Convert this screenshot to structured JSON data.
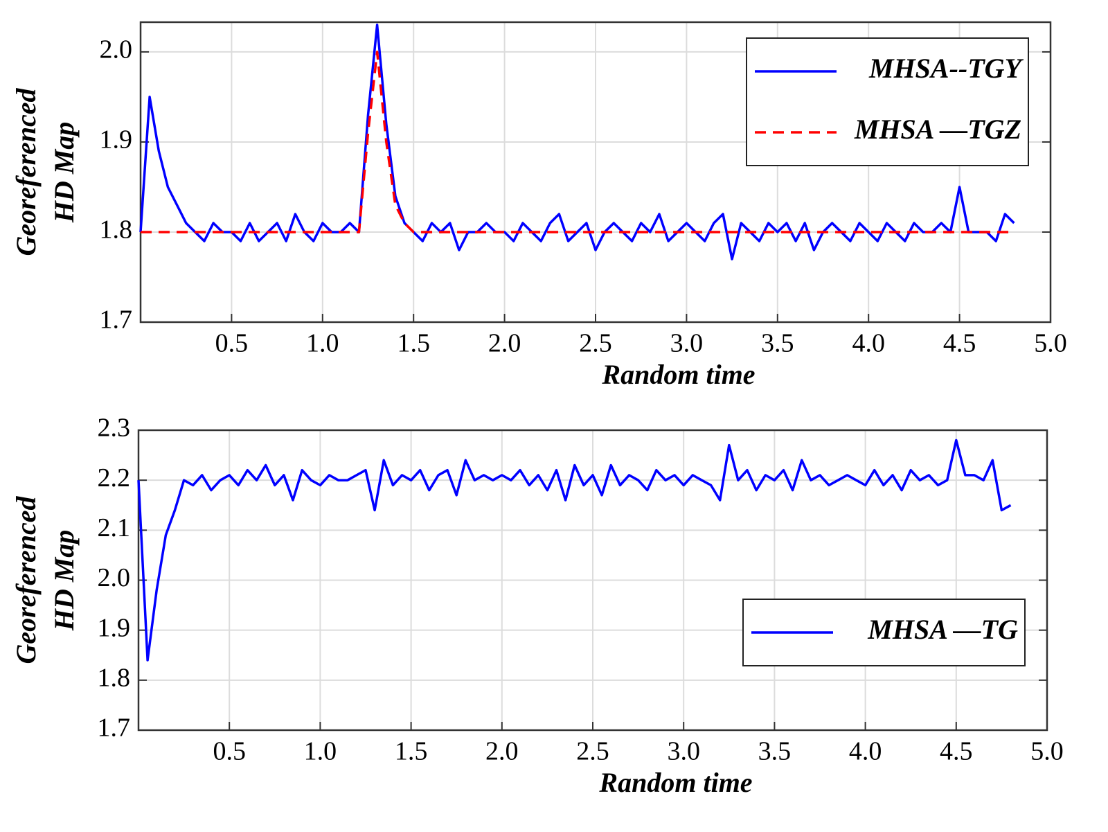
{
  "chart_data": [
    {
      "type": "line",
      "xlabel": "Random time",
      "ylabel": [
        "Georeferenced",
        "HD Map"
      ],
      "xlim": [
        0,
        5
      ],
      "ylim": [
        1.7,
        2.033
      ],
      "grid": true,
      "legend": "upper right",
      "xticks": [
        0.5,
        {
          "value": 1,
          "label": "1.0"
        },
        1.5,
        {
          "value": 2,
          "label": "2.0"
        },
        2.5,
        {
          "value": 3,
          "label": "3.0"
        },
        3.5,
        {
          "value": 4,
          "label": "4.0"
        },
        4.5,
        {
          "value": 5,
          "label": "5.0"
        }
      ],
      "yticks": [
        1.7,
        1.8,
        1.9,
        {
          "value": 2,
          "label": "2.0"
        }
      ],
      "x": [
        0,
        0.05,
        0.1,
        0.15,
        0.2,
        0.25,
        0.3,
        0.35,
        0.4,
        0.45,
        0.5,
        0.55,
        0.6,
        0.65,
        0.7,
        0.75,
        0.8,
        0.85,
        0.9,
        0.95,
        1,
        1.05,
        1.1,
        1.15,
        1.2,
        1.25,
        1.3,
        1.35,
        1.4,
        1.45,
        1.5,
        1.55,
        1.6,
        1.65,
        1.7,
        1.75,
        1.8,
        1.85,
        1.9,
        1.95,
        2,
        2.05,
        2.1,
        2.15,
        2.2,
        2.25,
        2.3,
        2.35,
        2.4,
        2.45,
        2.5,
        2.55,
        2.6,
        2.65,
        2.7,
        2.75,
        2.8,
        2.85,
        2.9,
        2.95,
        3,
        3.05,
        3.1,
        3.15,
        3.2,
        3.25,
        3.3,
        3.35,
        3.4,
        3.45,
        3.5,
        3.55,
        3.6,
        3.65,
        3.7,
        3.75,
        3.8,
        3.85,
        3.9,
        3.95,
        4,
        4.05,
        4.1,
        4.15,
        4.2,
        4.25,
        4.3,
        4.35,
        4.4,
        4.45,
        4.5,
        4.55,
        4.6,
        4.65,
        4.7,
        4.75,
        4.8
      ],
      "series": [
        {
          "name": "MHSA--TGY",
          "color": "#0000ff",
          "dash": false,
          "values": [
            1.8,
            1.95,
            1.89,
            1.85,
            1.83,
            1.81,
            1.8,
            1.79,
            1.81,
            1.8,
            1.8,
            1.79,
            1.81,
            1.79,
            1.8,
            1.81,
            1.79,
            1.82,
            1.8,
            1.79,
            1.81,
            1.8,
            1.8,
            1.81,
            1.8,
            1.93,
            2.03,
            1.92,
            1.84,
            1.81,
            1.8,
            1.79,
            1.81,
            1.8,
            1.81,
            1.78,
            1.8,
            1.8,
            1.81,
            1.8,
            1.8,
            1.79,
            1.81,
            1.8,
            1.79,
            1.81,
            1.82,
            1.79,
            1.8,
            1.81,
            1.78,
            1.8,
            1.81,
            1.8,
            1.79,
            1.81,
            1.8,
            1.82,
            1.79,
            1.8,
            1.81,
            1.8,
            1.79,
            1.81,
            1.82,
            1.77,
            1.81,
            1.8,
            1.79,
            1.81,
            1.8,
            1.81,
            1.79,
            1.81,
            1.78,
            1.8,
            1.81,
            1.8,
            1.79,
            1.81,
            1.8,
            1.79,
            1.81,
            1.8,
            1.79,
            1.81,
            1.8,
            1.8,
            1.81,
            1.8,
            1.85,
            1.8,
            1.8,
            1.8,
            1.79,
            1.82,
            1.81
          ]
        },
        {
          "name": "MHSA —TGZ",
          "color": "#ff0000",
          "dash": true,
          "values": [
            1.8,
            1.8,
            1.8,
            1.8,
            1.8,
            1.8,
            1.8,
            1.8,
            1.8,
            1.8,
            1.8,
            1.8,
            1.8,
            1.8,
            1.8,
            1.8,
            1.8,
            1.8,
            1.8,
            1.8,
            1.8,
            1.8,
            1.8,
            1.8,
            1.8,
            1.91,
            2.0,
            1.9,
            1.83,
            1.81,
            1.8,
            1.8,
            1.8,
            1.8,
            1.8,
            1.8,
            1.8,
            1.8,
            1.8,
            1.8,
            1.8,
            1.8,
            1.8,
            1.8,
            1.8,
            1.8,
            1.8,
            1.8,
            1.8,
            1.8,
            1.8,
            1.8,
            1.8,
            1.8,
            1.8,
            1.8,
            1.8,
            1.8,
            1.8,
            1.8,
            1.8,
            1.8,
            1.8,
            1.8,
            1.8,
            1.8,
            1.8,
            1.8,
            1.8,
            1.8,
            1.8,
            1.8,
            1.8,
            1.8,
            1.8,
            1.8,
            1.8,
            1.8,
            1.8,
            1.8,
            1.8,
            1.8,
            1.8,
            1.8,
            1.8,
            1.8,
            1.8,
            1.8,
            1.8,
            1.8,
            1.8,
            1.8,
            1.8,
            1.8,
            1.8,
            1.8,
            1.8
          ]
        }
      ]
    },
    {
      "type": "line",
      "xlabel": "Random time",
      "ylabel": [
        "Georeferenced",
        "HD Map"
      ],
      "xlim": [
        0,
        5
      ],
      "ylim": [
        1.7,
        2.3
      ],
      "grid": true,
      "legend": "lower right",
      "xticks": [
        0.5,
        {
          "value": 1,
          "label": "1.0"
        },
        1.5,
        {
          "value": 2,
          "label": "2.0"
        },
        2.5,
        {
          "value": 3,
          "label": "3.0"
        },
        3.5,
        {
          "value": 4,
          "label": "4.0"
        },
        4.5,
        {
          "value": 5,
          "label": "5.0"
        }
      ],
      "yticks": [
        1.7,
        1.8,
        1.9,
        {
          "value": 2,
          "label": "2.0"
        },
        2.1,
        2.2,
        2.3
      ],
      "x": [
        0,
        0.05,
        0.1,
        0.15,
        0.2,
        0.25,
        0.3,
        0.35,
        0.4,
        0.45,
        0.5,
        0.55,
        0.6,
        0.65,
        0.7,
        0.75,
        0.8,
        0.85,
        0.9,
        0.95,
        1,
        1.05,
        1.1,
        1.15,
        1.2,
        1.25,
        1.3,
        1.35,
        1.4,
        1.45,
        1.5,
        1.55,
        1.6,
        1.65,
        1.7,
        1.75,
        1.8,
        1.85,
        1.9,
        1.95,
        2,
        2.05,
        2.1,
        2.15,
        2.2,
        2.25,
        2.3,
        2.35,
        2.4,
        2.45,
        2.5,
        2.55,
        2.6,
        2.65,
        2.7,
        2.75,
        2.8,
        2.85,
        2.9,
        2.95,
        3,
        3.05,
        3.1,
        3.15,
        3.2,
        3.25,
        3.3,
        3.35,
        3.4,
        3.45,
        3.5,
        3.55,
        3.6,
        3.65,
        3.7,
        3.75,
        3.8,
        3.85,
        3.9,
        3.95,
        4,
        4.05,
        4.1,
        4.15,
        4.2,
        4.25,
        4.3,
        4.35,
        4.4,
        4.45,
        4.5,
        4.55,
        4.6,
        4.65,
        4.7,
        4.75,
        4.8
      ],
      "series": [
        {
          "name": "MHSA —TG",
          "color": "#0000ff",
          "dash": false,
          "values": [
            2.2,
            1.84,
            1.98,
            2.09,
            2.14,
            2.2,
            2.19,
            2.21,
            2.18,
            2.2,
            2.21,
            2.19,
            2.22,
            2.2,
            2.23,
            2.19,
            2.21,
            2.16,
            2.22,
            2.2,
            2.19,
            2.21,
            2.2,
            2.2,
            2.21,
            2.22,
            2.14,
            2.24,
            2.19,
            2.21,
            2.2,
            2.22,
            2.18,
            2.21,
            2.22,
            2.17,
            2.24,
            2.2,
            2.21,
            2.2,
            2.21,
            2.2,
            2.22,
            2.19,
            2.21,
            2.18,
            2.22,
            2.16,
            2.23,
            2.19,
            2.21,
            2.17,
            2.23,
            2.19,
            2.21,
            2.2,
            2.18,
            2.22,
            2.2,
            2.21,
            2.19,
            2.21,
            2.2,
            2.19,
            2.16,
            2.27,
            2.2,
            2.22,
            2.18,
            2.21,
            2.2,
            2.22,
            2.18,
            2.24,
            2.2,
            2.21,
            2.19,
            2.2,
            2.21,
            2.2,
            2.19,
            2.22,
            2.19,
            2.21,
            2.18,
            2.22,
            2.2,
            2.21,
            2.19,
            2.2,
            2.28,
            2.21,
            2.21,
            2.2,
            2.24,
            2.14,
            2.15
          ]
        }
      ]
    }
  ]
}
